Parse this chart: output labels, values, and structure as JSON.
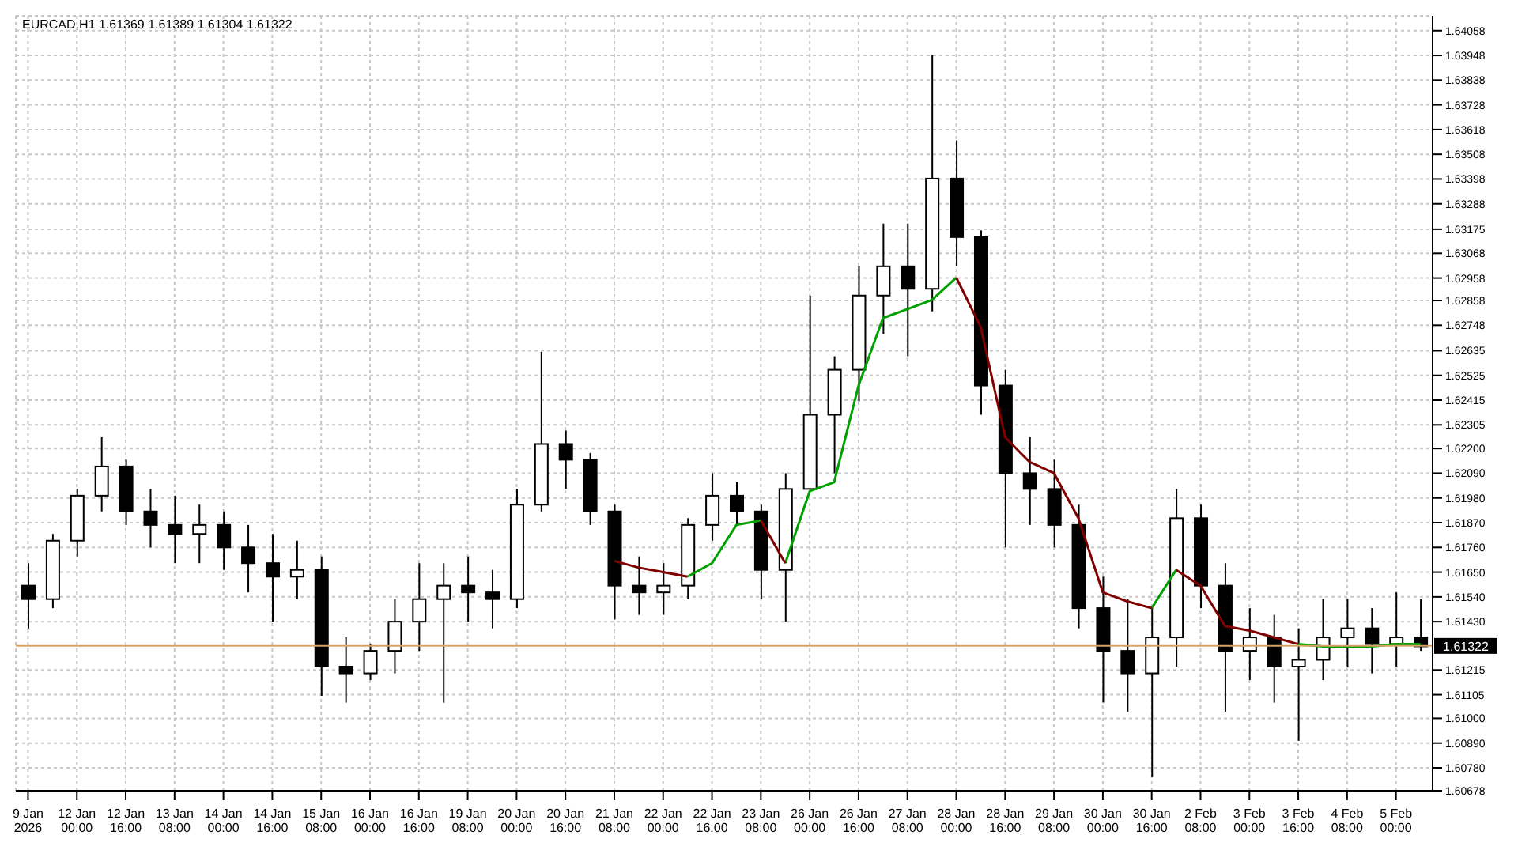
{
  "chart_data": {
    "type": "candlestick",
    "title": "EURCAD,H1  1.61369 1.61389 1.61304 1.61322",
    "color": "#000000",
    "categories": [
      "9 Jan 2026",
      null,
      "12 Jan 00:00",
      null,
      "12 Jan 16:00",
      null,
      "13 Jan 08:00",
      null,
      "14 Jan 00:00",
      null,
      "14 Jan 16:00",
      null,
      "15 Jan 08:00",
      null,
      "16 Jan 00:00",
      null,
      "16 Jan 16:00",
      null,
      "19 Jan 08:00",
      null,
      "20 Jan 00:00",
      null,
      "20 Jan 16:00",
      null,
      "21 Jan 08:00",
      null,
      "22 Jan 00:00",
      null,
      "22 Jan 16:00",
      null,
      "23 Jan 08:00",
      null,
      "26 Jan 00:00",
      null,
      "26 Jan 16:00",
      null,
      "27 Jan 08:00",
      null,
      "28 Jan 00:00",
      null,
      "28 Jan 16:00",
      null,
      "29 Jan 08:00",
      null,
      "30 Jan 00:00",
      null,
      "30 Jan 16:00",
      null,
      "2 Feb 08:00",
      null,
      "3 Feb 00:00",
      null,
      "3 Feb 16:00",
      null,
      "4 Feb 08:00",
      null,
      "5 Feb 00:00",
      null
    ],
    "ohlc": [
      [
        1.6159,
        1.6169,
        1.614,
        1.6153
      ],
      [
        1.6153,
        1.6182,
        1.6149,
        1.6179
      ],
      [
        1.6179,
        1.6202,
        1.6172,
        1.6199
      ],
      [
        1.6199,
        1.6225,
        1.6192,
        1.6212
      ],
      [
        1.6212,
        1.6215,
        1.6186,
        1.6192
      ],
      [
        1.6192,
        1.6202,
        1.6176,
        1.6186
      ],
      [
        1.6186,
        1.6199,
        1.6169,
        1.6182
      ],
      [
        1.6182,
        1.6195,
        1.6169,
        1.6186
      ],
      [
        1.6186,
        1.6192,
        1.6166,
        1.6176
      ],
      [
        1.6176,
        1.6186,
        1.6156,
        1.6169
      ],
      [
        1.6169,
        1.6182,
        1.6143,
        1.6163
      ],
      [
        1.6163,
        1.6179,
        1.6153,
        1.6166
      ],
      [
        1.6166,
        1.6172,
        1.611,
        1.6123
      ],
      [
        1.6123,
        1.6136,
        1.6107,
        1.612
      ],
      [
        1.612,
        1.6133,
        1.6117,
        1.613
      ],
      [
        1.613,
        1.6153,
        1.612,
        1.6143
      ],
      [
        1.6143,
        1.6169,
        1.613,
        1.6153
      ],
      [
        1.6153,
        1.6169,
        1.6107,
        1.6159
      ],
      [
        1.6159,
        1.6172,
        1.6143,
        1.6156
      ],
      [
        1.6156,
        1.6166,
        1.614,
        1.6153
      ],
      [
        1.6153,
        1.6202,
        1.6149,
        1.6195
      ],
      [
        1.6195,
        1.6263,
        1.6192,
        1.6222
      ],
      [
        1.6222,
        1.6228,
        1.6202,
        1.6215
      ],
      [
        1.6215,
        1.6218,
        1.6186,
        1.6192
      ],
      [
        1.6192,
        1.6195,
        1.6144,
        1.6159
      ],
      [
        1.6159,
        1.6172,
        1.6146,
        1.6156
      ],
      [
        1.6156,
        1.6169,
        1.6146,
        1.6159
      ],
      [
        1.6159,
        1.6189,
        1.6153,
        1.6186
      ],
      [
        1.6186,
        1.6209,
        1.6179,
        1.6199
      ],
      [
        1.6199,
        1.6205,
        1.6186,
        1.6192
      ],
      [
        1.6192,
        1.6195,
        1.6153,
        1.6166
      ],
      [
        1.6166,
        1.6209,
        1.6143,
        1.6202
      ],
      [
        1.6202,
        1.6288,
        1.6202,
        1.6235
      ],
      [
        1.6235,
        1.6261,
        1.6209,
        1.6255
      ],
      [
        1.6255,
        1.6301,
        1.6241,
        1.6288
      ],
      [
        1.6288,
        1.632,
        1.6271,
        1.6301
      ],
      [
        1.6301,
        1.632,
        1.6261,
        1.6291
      ],
      [
        1.6291,
        1.6395,
        1.6281,
        1.634
      ],
      [
        1.634,
        1.6357,
        1.6301,
        1.6314
      ],
      [
        1.6314,
        1.6317,
        1.6235,
        1.6248
      ],
      [
        1.6248,
        1.6255,
        1.6176,
        1.6209
      ],
      [
        1.6209,
        1.6225,
        1.6186,
        1.6202
      ],
      [
        1.6202,
        1.6215,
        1.6176,
        1.6186
      ],
      [
        1.6186,
        1.6195,
        1.614,
        1.6149
      ],
      [
        1.6149,
        1.6163,
        1.6107,
        1.613
      ],
      [
        1.613,
        1.6153,
        1.6103,
        1.612
      ],
      [
        1.612,
        1.6149,
        1.6074,
        1.6136
      ],
      [
        1.6136,
        1.6202,
        1.6123,
        1.6189
      ],
      [
        1.6189,
        1.6195,
        1.6149,
        1.6159
      ],
      [
        1.6159,
        1.6169,
        1.6103,
        1.613
      ],
      [
        1.613,
        1.6149,
        1.6117,
        1.6136
      ],
      [
        1.6136,
        1.6146,
        1.6107,
        1.6123
      ],
      [
        1.6123,
        1.614,
        1.609,
        1.6126
      ],
      [
        1.6126,
        1.6153,
        1.6117,
        1.6136
      ],
      [
        1.6136,
        1.6153,
        1.6123,
        1.614
      ],
      [
        1.614,
        1.6149,
        1.612,
        1.6133
      ],
      [
        1.6133,
        1.6156,
        1.6123,
        1.6136
      ],
      [
        1.6136,
        1.6153,
        1.613,
        1.6132
      ]
    ],
    "series": [
      {
        "type": "line",
        "color": "#00a000",
        "values": [
          null,
          null,
          null,
          null,
          null,
          null,
          null,
          null,
          null,
          null,
          null,
          null,
          null,
          null,
          null,
          null,
          null,
          null,
          null,
          null,
          null,
          null,
          null,
          null,
          null,
          null,
          null,
          1.6163,
          1.6169,
          1.6186,
          1.6188,
          null,
          null,
          null,
          null,
          null,
          null,
          null,
          null,
          null,
          null,
          null,
          null,
          null,
          null,
          null,
          null,
          null,
          null,
          null,
          null,
          null,
          1.6133,
          1.6132,
          1.6132,
          1.6132,
          1.6133,
          1.6133
        ]
      },
      {
        "type": "line",
        "color": "#00a000",
        "values": [
          null,
          null,
          null,
          null,
          null,
          null,
          null,
          null,
          null,
          null,
          null,
          null,
          null,
          null,
          null,
          null,
          null,
          null,
          null,
          null,
          null,
          null,
          null,
          null,
          null,
          null,
          null,
          null,
          null,
          null,
          null,
          1.6169,
          1.6201,
          1.6205,
          1.6248,
          1.6278,
          1.6282,
          1.6286,
          1.6296,
          null,
          null,
          null,
          null,
          null,
          null,
          null,
          1.6149,
          1.6166,
          null,
          null,
          null,
          null,
          null,
          null,
          null,
          null,
          null,
          null
        ]
      },
      {
        "type": "line",
        "color": "#800000",
        "values": [
          null,
          null,
          null,
          null,
          null,
          null,
          null,
          null,
          null,
          null,
          null,
          null,
          null,
          null,
          null,
          null,
          null,
          null,
          null,
          null,
          null,
          null,
          null,
          null,
          1.617,
          1.6167,
          1.6165,
          1.6163,
          null,
          null,
          1.6188,
          1.6169,
          null,
          null,
          null,
          null,
          null,
          null,
          null,
          null,
          null,
          null,
          null,
          null,
          null,
          null,
          null,
          1.6166,
          1.6159,
          1.6141,
          1.6139,
          1.6136,
          1.6133,
          null,
          null,
          null,
          null,
          null
        ]
      },
      {
        "type": "line",
        "color": "#800000",
        "values": [
          null,
          null,
          null,
          null,
          null,
          null,
          null,
          null,
          null,
          null,
          null,
          null,
          null,
          null,
          null,
          null,
          null,
          null,
          null,
          null,
          null,
          null,
          null,
          null,
          null,
          null,
          null,
          null,
          null,
          null,
          null,
          null,
          null,
          null,
          null,
          null,
          null,
          null,
          1.6296,
          1.6274,
          1.6225,
          1.6214,
          1.6209,
          1.6189,
          1.6156,
          1.6152,
          1.6149,
          null,
          null,
          null,
          null,
          null,
          null,
          null,
          null,
          null,
          null,
          null
        ]
      }
    ],
    "ylim": [
      1.60678,
      1.64124
    ],
    "yticks": [
      1.64058,
      1.63948,
      1.63838,
      1.63728,
      1.63618,
      1.63508,
      1.63398,
      1.63288,
      1.63175,
      1.63068,
      1.62958,
      1.62858,
      1.62748,
      1.62635,
      1.62525,
      1.62415,
      1.62305,
      {
        "value": 1.622,
        "label": "1.62200"
      },
      {
        "value": 1.6209,
        "label": "1.62090"
      },
      {
        "value": 1.6198,
        "label": "1.61980"
      },
      {
        "value": 1.6187,
        "label": "1.61870"
      },
      {
        "value": 1.6176,
        "label": "1.61760"
      },
      {
        "value": 1.6165,
        "label": "1.61650"
      },
      {
        "value": 1.6154,
        "label": "1.61540"
      },
      {
        "value": 1.6143,
        "label": "1.61430"
      },
      1.61215,
      1.61105,
      {
        "value": 1.61,
        "label": "1.61000"
      },
      {
        "value": 1.6089,
        "label": "1.60890"
      },
      {
        "value": 1.6078,
        "label": "1.60780"
      },
      1.60678
    ],
    "ref_lines": [
      {
        "axis": "y",
        "value": 1.61322,
        "label": "1.61322",
        "color": "#d9a066"
      }
    ],
    "grid": true
  }
}
